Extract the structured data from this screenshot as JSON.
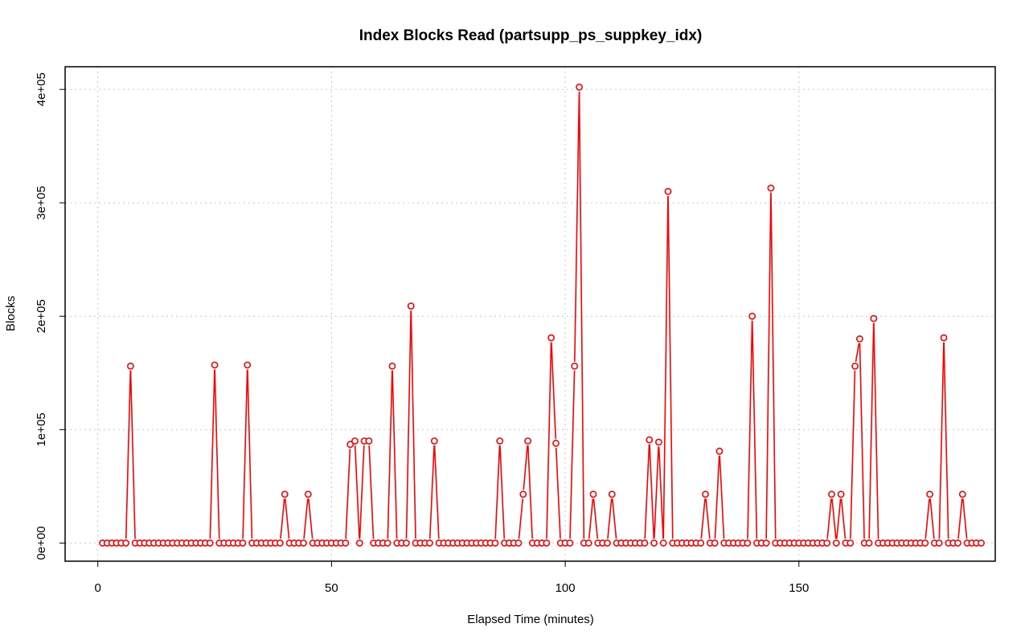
{
  "chart_data": {
    "type": "line",
    "title": "Index Blocks Read (partsupp_ps_suppkey_idx)",
    "xlabel": "Elapsed Time (minutes)",
    "ylabel": "Blocks",
    "xlim": [
      -7,
      192
    ],
    "ylim": [
      -16000,
      420000
    ],
    "x_ticks": [
      0,
      50,
      100,
      150
    ],
    "x_tick_labels": [
      "0",
      "50",
      "100",
      "150"
    ],
    "y_ticks": [
      0,
      100000,
      200000,
      300000,
      400000
    ],
    "y_tick_labels": [
      "0e+00",
      "1e+05",
      "2e+05",
      "3e+05",
      "4e+05"
    ],
    "grid": true,
    "series": [
      {
        "color": "#ff0000",
        "marker": "open-circle",
        "x_start": 1,
        "x_step": 1,
        "values": [
          0,
          0,
          0,
          0,
          0,
          0,
          156000,
          0,
          0,
          0,
          0,
          0,
          0,
          0,
          0,
          0,
          0,
          0,
          0,
          0,
          0,
          0,
          0,
          0,
          157000,
          0,
          0,
          0,
          0,
          0,
          0,
          157000,
          0,
          0,
          0,
          0,
          0,
          0,
          0,
          43000,
          0,
          0,
          0,
          0,
          43000,
          0,
          0,
          0,
          0,
          0,
          0,
          0,
          0,
          87000,
          90000,
          0,
          90000,
          90000,
          0,
          0,
          0,
          0,
          156000,
          0,
          0,
          0,
          209000,
          0,
          0,
          0,
          0,
          90000,
          0,
          0,
          0,
          0,
          0,
          0,
          0,
          0,
          0,
          0,
          0,
          0,
          0,
          90000,
          0,
          0,
          0,
          0,
          43000,
          90000,
          0,
          0,
          0,
          0,
          181000,
          88000,
          0,
          0,
          0,
          156000,
          402000,
          0,
          0,
          43000,
          0,
          0,
          0,
          43000,
          0,
          0,
          0,
          0,
          0,
          0,
          0,
          91000,
          0,
          89000,
          0,
          310000,
          0,
          0,
          0,
          0,
          0,
          0,
          0,
          43000,
          0,
          0,
          81000,
          0,
          0,
          0,
          0,
          0,
          0,
          200000,
          0,
          0,
          0,
          313000,
          0,
          0,
          0,
          0,
          0,
          0,
          0,
          0,
          0,
          0,
          0,
          0,
          43000,
          0,
          43000,
          0,
          0,
          156000,
          180000,
          0,
          0,
          198000,
          0,
          0,
          0,
          0,
          0,
          0,
          0,
          0,
          0,
          0,
          0,
          43000,
          0,
          0,
          181000,
          0,
          0,
          0,
          43000,
          0,
          0,
          0,
          0
        ]
      }
    ]
  }
}
